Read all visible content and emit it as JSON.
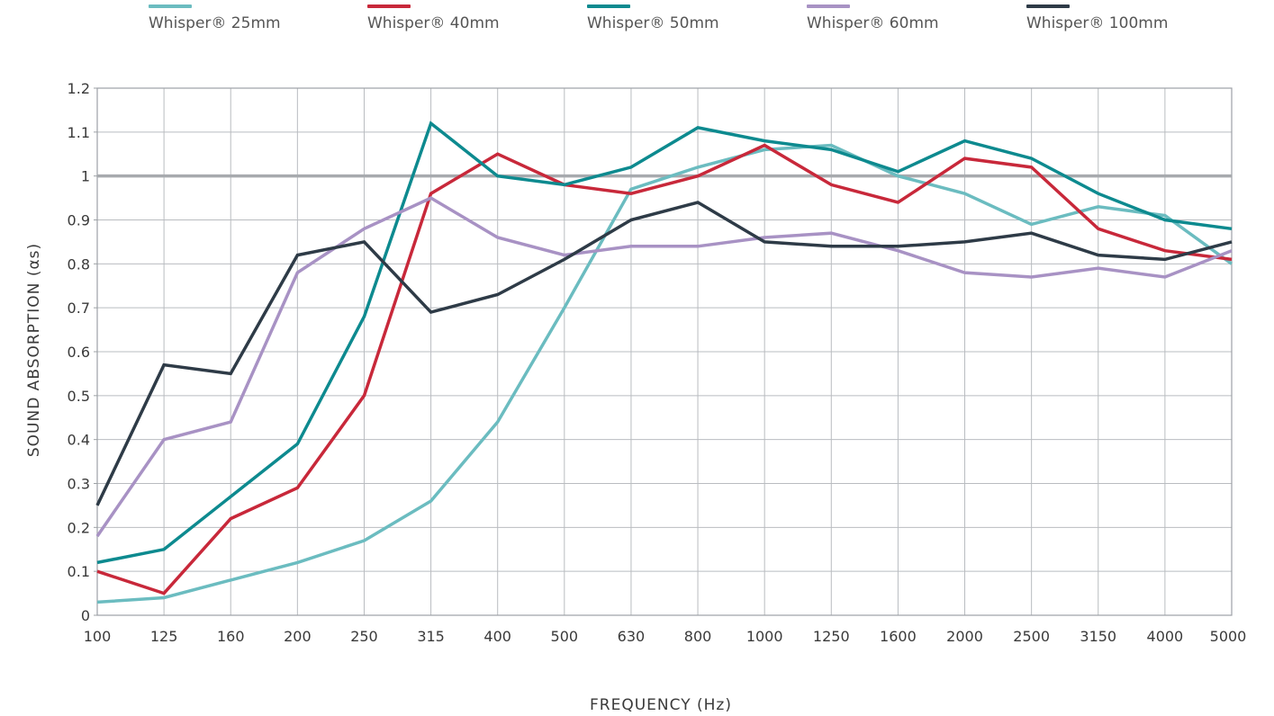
{
  "chart_data": {
    "type": "line",
    "xlabel": "FREQUENCY (Hz)",
    "ylabel": "SOUND ABSORPTION (αs)",
    "ylim": [
      0,
      1.2
    ],
    "yticks": [
      "0",
      "0.1",
      "0.2",
      "0.3",
      "0.4",
      "0.5",
      "0.6",
      "0.7",
      "0.8",
      "0.9",
      "1",
      "1.1",
      "1.2"
    ],
    "x": [
      "100",
      "125",
      "160",
      "200",
      "250",
      "315",
      "400",
      "500",
      "630",
      "800",
      "1000",
      "1250",
      "1600",
      "2000",
      "2500",
      "3150",
      "4000",
      "5000"
    ],
    "grid": true,
    "reference_line": 1.0,
    "legend_position": "top",
    "series": [
      {
        "name": "Whisper® 25mm",
        "color": "#6bbcc0",
        "values": [
          0.03,
          0.04,
          0.08,
          0.12,
          0.17,
          0.26,
          0.44,
          0.7,
          0.97,
          1.02,
          1.06,
          1.07,
          1.0,
          0.96,
          0.89,
          0.93,
          0.91,
          0.8
        ]
      },
      {
        "name": "Whisper® 40mm",
        "color": "#c8283a",
        "values": [
          0.1,
          0.05,
          0.22,
          0.29,
          0.5,
          0.96,
          1.05,
          0.98,
          0.96,
          1.0,
          1.07,
          0.98,
          0.94,
          1.04,
          1.02,
          0.88,
          0.83,
          0.81
        ]
      },
      {
        "name": "Whisper® 50mm",
        "color": "#0d8a8f",
        "values": [
          0.12,
          0.15,
          0.27,
          0.39,
          0.68,
          1.12,
          1.0,
          0.98,
          1.02,
          1.11,
          1.08,
          1.06,
          1.01,
          1.08,
          1.04,
          0.96,
          0.9,
          0.88
        ]
      },
      {
        "name": "Whisper® 60mm",
        "color": "#a892c4",
        "values": [
          0.18,
          0.4,
          0.44,
          0.78,
          0.88,
          0.95,
          0.86,
          0.82,
          0.84,
          0.84,
          0.86,
          0.87,
          0.83,
          0.78,
          0.77,
          0.79,
          0.77,
          0.83
        ]
      },
      {
        "name": "Whisper® 100mm",
        "color": "#2e3b47",
        "values": [
          0.25,
          0.57,
          0.55,
          0.82,
          0.85,
          0.69,
          0.73,
          0.81,
          0.9,
          0.94,
          0.85,
          0.84,
          0.84,
          0.85,
          0.87,
          0.82,
          0.81,
          0.85
        ]
      }
    ]
  }
}
